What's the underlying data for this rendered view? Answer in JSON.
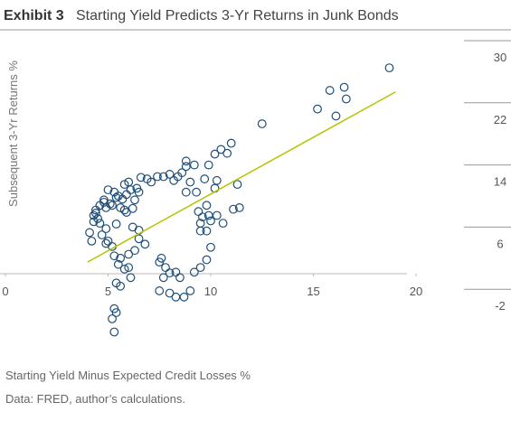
{
  "chart_data": {
    "type": "scatter",
    "title_label": "Exhibit 3",
    "title": "Starting Yield Predicts 3-Yr Returns in Junk Bonds",
    "ylabel": "Subsequent 3-Yr Returns %",
    "xlabel": "Starting Yield Minus Expected Credit Losses %",
    "source": "Data: FRED, author’s calculations.",
    "xlim": [
      0,
      20
    ],
    "ylim": [
      -10,
      30
    ],
    "xticks": [
      0,
      5,
      10,
      15,
      20
    ],
    "yticks": [
      -2,
      6,
      14,
      22,
      30
    ],
    "color": "#1f4e79",
    "trend_color": "#b5c500",
    "trendline": {
      "x": [
        4,
        19
      ],
      "values": [
        1.5,
        23.4
      ]
    },
    "x": [
      18.7,
      15.8,
      16.5,
      16.6,
      15.2,
      16.1,
      12.5,
      11,
      10.5,
      10.8,
      10.2,
      9.9,
      11.3,
      10.2,
      11.4,
      11.1,
      10.3,
      10.6,
      9.9,
      9.6,
      9.5,
      10,
      9.4,
      9.8,
      9.3,
      8.8,
      9,
      8.4,
      8.8,
      9.2,
      8.6,
      8.2,
      7.7,
      7.4,
      6.9,
      6.6,
      6.5,
      6.4,
      6.3,
      6,
      5.8,
      5.9,
      5.5,
      5.3,
      5.1,
      4.8,
      5,
      5.4,
      5.6,
      5.8,
      6.2,
      5.9,
      4.5,
      4.6,
      4.3,
      4.1,
      4.2,
      4.7,
      5,
      5.2,
      5.3,
      4.9,
      4.9,
      5.4,
      6.2,
      6.5,
      6.5,
      6.8,
      6.3,
      6,
      5.6,
      5.8,
      5.5,
      6,
      6.1,
      5.4,
      5.6,
      5.3,
      5.4,
      5.2,
      5.3,
      7.5,
      8,
      8.3,
      8.7,
      9,
      7.7,
      8,
      8.3,
      7.8,
      7.5,
      7.6,
      8.5,
      9.2,
      9.5,
      9.8,
      10,
      9.5,
      9.8,
      4.3,
      4.4,
      4.6,
      4.8,
      4.4,
      4.9,
      5.2,
      5.7,
      6.1,
      7.1,
      8,
      8.8,
      10.3,
      9.7
    ],
    "values": [
      26.5,
      23.6,
      24,
      22.5,
      21.2,
      20.3,
      19.3,
      16.8,
      16,
      15.5,
      15.4,
      14,
      11.5,
      11,
      8.5,
      8.3,
      7.5,
      6.5,
      7.5,
      7.3,
      6.5,
      6.8,
      8,
      8.8,
      10.5,
      10.5,
      11.8,
      12.5,
      13.8,
      14,
      13,
      12,
      12.5,
      12.5,
      12.2,
      12.4,
      10.5,
      11,
      9.5,
      11.8,
      11.5,
      10.2,
      10,
      10.5,
      9,
      9.5,
      10.8,
      9.8,
      8.5,
      8.2,
      8.4,
      7.9,
      7.1,
      6.5,
      6.7,
      5.3,
      4.2,
      5,
      4.2,
      3.5,
      2.3,
      3.9,
      5.8,
      6.4,
      6,
      5.6,
      4.5,
      3.8,
      3,
      2.5,
      2,
      0.6,
      1.2,
      0.8,
      -0.5,
      -1.2,
      -1.6,
      -4.5,
      -5,
      -5.8,
      -7.5,
      -2.2,
      -2.5,
      -3,
      -3,
      -2.2,
      -0.5,
      0.1,
      0.2,
      0.8,
      1.5,
      2,
      -0.5,
      0.2,
      0.8,
      1.8,
      3.4,
      5.5,
      5.5,
      7.5,
      8.2,
      8.8,
      9.2,
      7.8,
      8.5,
      8.8,
      9.6,
      10.8,
      11.8,
      12.8,
      14.5,
      12,
      12.2
    ]
  }
}
